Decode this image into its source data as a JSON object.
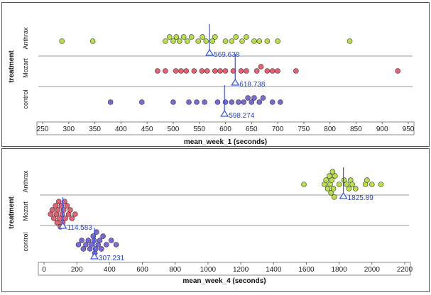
{
  "chart_data": [
    {
      "type": "scatter",
      "subtype": "dot-plot",
      "ylabel": "treatment",
      "xlabel": "mean_week_1 (seconds)",
      "categories": [
        "Anthrax",
        "Mozart",
        "control"
      ],
      "xlim": [
        250,
        950
      ],
      "xticks": [
        250,
        300,
        350,
        400,
        450,
        500,
        550,
        600,
        650,
        700,
        750,
        800,
        850,
        900,
        950
      ],
      "colors": {
        "Anthrax": "#b8e04a",
        "Mozart": "#e86072",
        "control": "#7a6ad8",
        "mean": "#3355ee"
      },
      "series": [
        {
          "name": "Anthrax",
          "mean": 569.638,
          "mean_label": "569.638",
          "values": [
            287,
            346,
            485,
            493,
            500,
            506,
            512,
            520,
            527,
            535,
            548,
            556,
            563,
            575,
            580,
            600,
            612,
            620,
            632,
            640,
            655,
            665,
            680,
            700,
            838
          ]
        },
        {
          "name": "Mozart",
          "mean": 618.738,
          "mean_label": "618.738",
          "values": [
            470,
            485,
            505,
            515,
            525,
            540,
            555,
            565,
            580,
            590,
            600,
            615,
            630,
            640,
            660,
            668,
            680,
            690,
            700,
            735,
            930
          ]
        },
        {
          "name": "control",
          "mean": 598.274,
          "mean_label": "598.274",
          "values": [
            380,
            440,
            500,
            530,
            545,
            560,
            585,
            600,
            612,
            625,
            635,
            643,
            650,
            655,
            665,
            672,
            690,
            705
          ]
        }
      ]
    },
    {
      "type": "scatter",
      "subtype": "dot-plot",
      "ylabel": "treatment",
      "xlabel": "mean_week_4 (seconds)",
      "categories": [
        "Anthrax",
        "Mozart",
        "control"
      ],
      "xlim": [
        0,
        2200
      ],
      "xticks": [
        0,
        200,
        400,
        600,
        800,
        1000,
        1200,
        1400,
        1600,
        1800,
        2000,
        2200
      ],
      "colors": {
        "Anthrax": "#b8e04a",
        "Mozart": "#e86072",
        "control": "#7a6ad8",
        "mean": "#3355ee"
      },
      "series": [
        {
          "name": "Anthrax",
          "mean": 1825.89,
          "mean_label": "1825.89",
          "values": [
            1585,
            1710,
            1720,
            1730,
            1740,
            1745,
            1750,
            1755,
            1760,
            1765,
            1770,
            1775,
            1800,
            1830,
            1845,
            1860,
            1870,
            1880,
            1900,
            1960,
            1970,
            2000,
            2055
          ]
        },
        {
          "name": "Mozart",
          "mean": 114.583,
          "mean_label": "114.583",
          "values": [
            40,
            50,
            60,
            70,
            75,
            80,
            85,
            90,
            95,
            100,
            105,
            110,
            115,
            120,
            125,
            130,
            140,
            150,
            160,
            170,
            190
          ]
        },
        {
          "name": "control",
          "mean": 307.231,
          "mean_label": "307.231",
          "values": [
            210,
            230,
            240,
            255,
            270,
            280,
            290,
            300,
            305,
            310,
            315,
            320,
            330,
            340,
            350,
            360,
            380,
            410,
            440
          ]
        }
      ]
    }
  ]
}
